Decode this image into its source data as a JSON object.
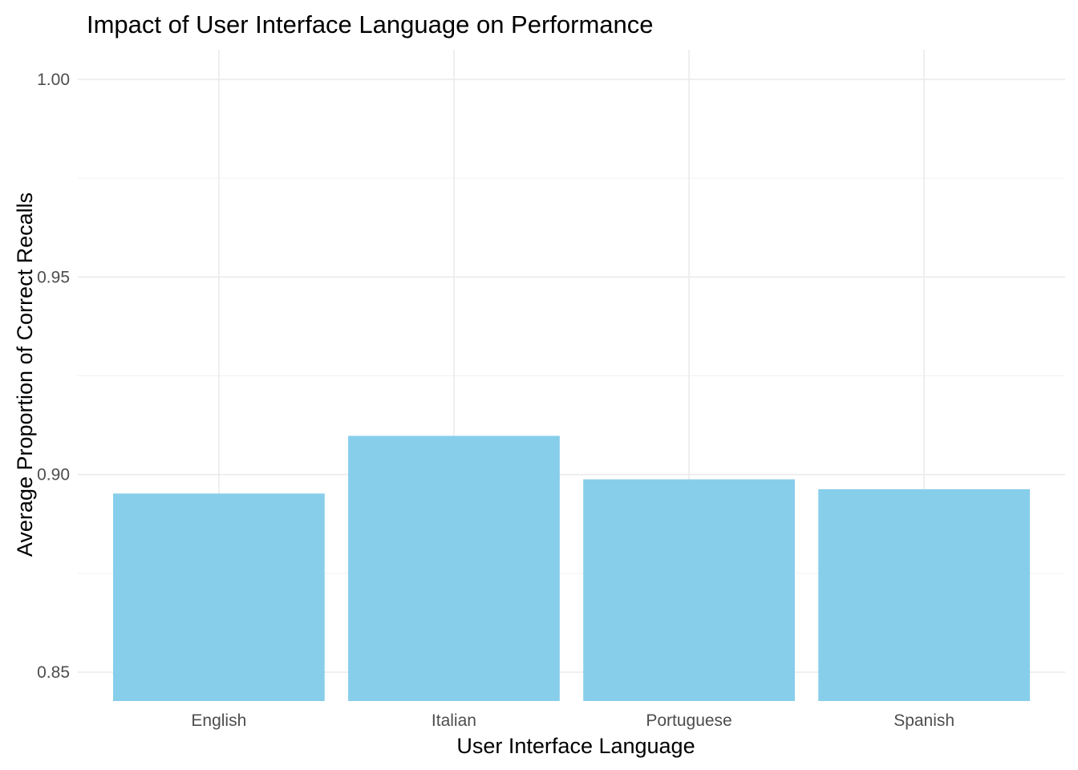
{
  "chart_data": {
    "type": "bar",
    "title": "Impact of User Interface Language on Performance",
    "xlabel": "User Interface Language",
    "ylabel": "Average Proportion of Correct Recalls",
    "categories": [
      "English",
      "Italian",
      "Portuguese",
      "Spanish"
    ],
    "values": [
      0.8952,
      0.9098,
      0.8988,
      0.8963
    ],
    "ylim": [
      0.8427,
      1.0075
    ],
    "yticks": [
      0.85,
      0.9,
      0.95,
      1.0
    ],
    "ytick_labels": [
      "0.85",
      "0.90",
      "0.95",
      "1.00"
    ],
    "grid": true,
    "legend": "none",
    "bar_color": "#87CEEB"
  }
}
